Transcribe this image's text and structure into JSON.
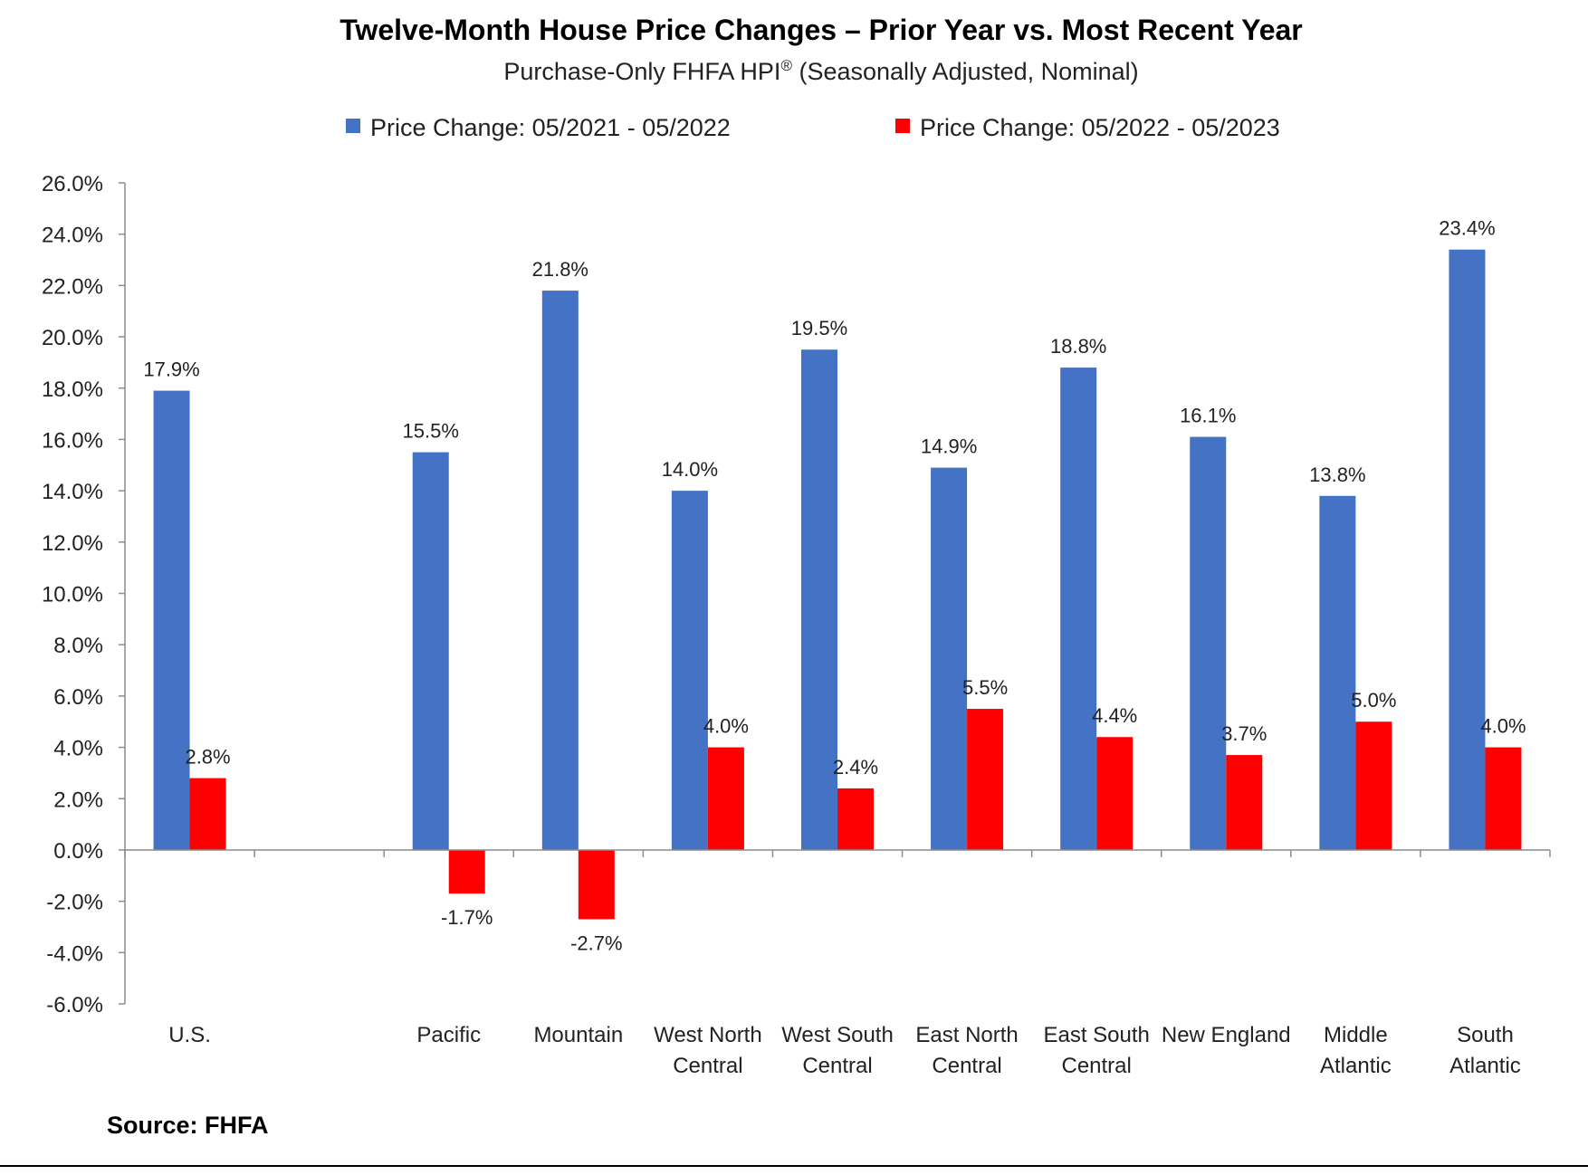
{
  "chart_data": {
    "type": "bar",
    "title": "Twelve-Month House Price Changes – Prior Year vs. Most Recent Year",
    "subtitle_main": "Purchase-Only FHFA HPI",
    "subtitle_sup": "®",
    "subtitle_tail": " (Seasonally Adjusted, Nominal)",
    "source": "Source: FHFA",
    "legend_position": "top-center",
    "grid": false,
    "ylim": [
      -6.0,
      26.0
    ],
    "ytick_step": 2.0,
    "ytick_suffix": "%",
    "categories": [
      [
        "U.S."
      ],
      [],
      [
        "Pacific"
      ],
      [
        "Mountain"
      ],
      [
        "West North",
        "Central"
      ],
      [
        "West South",
        "Central"
      ],
      [
        "East North",
        "Central"
      ],
      [
        "East South",
        "Central"
      ],
      [
        "New England"
      ],
      [
        "Middle",
        "Atlantic"
      ],
      [
        "South",
        "Atlantic"
      ]
    ],
    "series": [
      {
        "name": "Price Change:  05/2021 - 05/2022",
        "color": "#4472C4",
        "values": [
          17.9,
          null,
          15.5,
          21.8,
          14.0,
          19.5,
          14.9,
          18.8,
          16.1,
          13.8,
          23.4
        ]
      },
      {
        "name": "Price Change:  05/2022 - 05/2023",
        "color": "#FF0000",
        "values": [
          2.8,
          null,
          -1.7,
          -2.7,
          4.0,
          2.4,
          5.5,
          4.4,
          3.7,
          5.0,
          4.0
        ]
      }
    ]
  }
}
